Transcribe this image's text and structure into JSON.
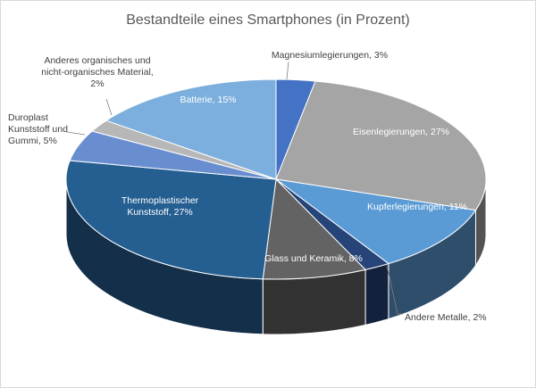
{
  "chart_data": {
    "type": "pie",
    "title": "Bestandteile eines Smartphones (in Prozent)",
    "unit": "%",
    "start_angle_deg": -90,
    "slices": [
      {
        "key": "magnesium",
        "label": "Magnesiumlegierungen, 3%",
        "value": 3,
        "color": "#4472c4"
      },
      {
        "key": "eisen",
        "label": "Eisenlegierungen, 27%",
        "value": 27,
        "color": "#a5a5a5"
      },
      {
        "key": "kupfer",
        "label": "Kupferlegierungen, 11%",
        "value": 11,
        "color": "#5b9bd5"
      },
      {
        "key": "andere-metalle",
        "label": "Andere Metalle, 2%",
        "value": 2,
        "color": "#264478"
      },
      {
        "key": "glas",
        "label": "Glass und Keramik, 8%",
        "value": 8,
        "color": "#636363"
      },
      {
        "key": "thermoplast",
        "label": "Thermoplastischer Kunststoff, 27%",
        "value": 27,
        "color": "#255e91"
      },
      {
        "key": "duroplast",
        "label": "Duroplast Kunststoff und Gummi, 5%",
        "value": 5,
        "color": "#698ed0"
      },
      {
        "key": "anderes-material",
        "label": "Anderes organisches und nicht-organisches Material, 2%",
        "value": 2,
        "color": "#b7b7b7"
      },
      {
        "key": "batterie",
        "label": "Batterie, 15%",
        "value": 15,
        "color": "#7cafdd"
      }
    ]
  }
}
